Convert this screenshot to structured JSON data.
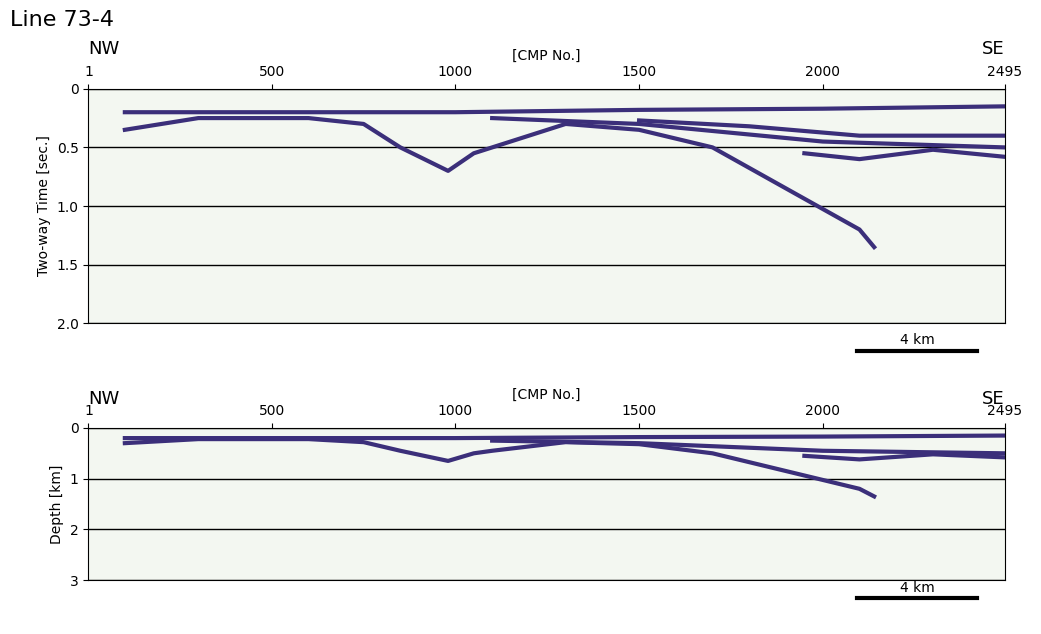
{
  "title": "Line 73-4",
  "chart_data": [
    {
      "type": "line",
      "x_label": "[CMP No.]",
      "y_label": "Two-way Time [sec.]",
      "left_label": "NW",
      "right_label": "SE",
      "xlim": [
        1,
        2495
      ],
      "xticks": [
        1,
        500,
        1000,
        1500,
        2000,
        2495
      ],
      "ylim": [
        2,
        0
      ],
      "yticks": [
        0,
        0.5,
        {
          "value": 1,
          "label": "1.0"
        },
        1.5,
        {
          "value": 2,
          "label": "2.0"
        }
      ],
      "grid": true,
      "scale_bar": {
        "label": "4 km",
        "length": 326
      },
      "series": [
        {
          "color": "#3b2f7a",
          "x": [
            100,
            500,
            1000,
            1500,
            2000,
            2495
          ],
          "values": [
            0.2,
            0.2,
            0.2,
            0.18,
            0.17,
            0.15
          ]
        },
        {
          "color": "#3b2f7a",
          "x": [
            100,
            300,
            600,
            750,
            850,
            980,
            1050,
            1100,
            1300,
            1500,
            1700,
            1900,
            2100,
            2140
          ],
          "values": [
            0.35,
            0.25,
            0.25,
            0.3,
            0.5,
            0.7,
            0.55,
            0.5,
            0.3,
            0.35,
            0.5,
            0.85,
            1.2,
            1.35
          ]
        },
        {
          "color": "#3b2f7a",
          "x": [
            1100,
            1500,
            2000,
            2495
          ],
          "values": [
            0.25,
            0.3,
            0.45,
            0.5
          ]
        },
        {
          "color": "#3b2f7a",
          "x": [
            1500,
            1800,
            2100,
            2495
          ],
          "values": [
            0.27,
            0.32,
            0.4,
            0.4
          ]
        },
        {
          "color": "#3b2f7a",
          "x": [
            1950,
            2100,
            2300,
            2495
          ],
          "values": [
            0.55,
            0.6,
            0.52,
            0.58
          ]
        }
      ]
    },
    {
      "type": "line",
      "x_label": "[CMP No.]",
      "y_label": "Depth [km]",
      "left_label": "NW",
      "right_label": "SE",
      "xlim": [
        1,
        2495
      ],
      "xticks": [
        1,
        500,
        1000,
        1500,
        2000,
        2495
      ],
      "ylim": [
        3,
        0
      ],
      "yticks": [
        0,
        1,
        2,
        3
      ],
      "grid": true,
      "scale_bar": {
        "label": "4 km",
        "length": 326
      },
      "series": [
        {
          "color": "#3b2f7a",
          "x": [
            100,
            500,
            1000,
            1500,
            2000,
            2495
          ],
          "values": [
            0.2,
            0.2,
            0.2,
            0.18,
            0.17,
            0.15
          ]
        },
        {
          "color": "#3b2f7a",
          "x": [
            100,
            300,
            600,
            750,
            850,
            980,
            1050,
            1100,
            1300,
            1500,
            1700,
            1900,
            2100,
            2140
          ],
          "values": [
            0.3,
            0.22,
            0.22,
            0.28,
            0.45,
            0.65,
            0.5,
            0.45,
            0.28,
            0.32,
            0.5,
            0.85,
            1.2,
            1.35
          ]
        },
        {
          "color": "#3b2f7a",
          "x": [
            1100,
            1500,
            2000,
            2495
          ],
          "values": [
            0.25,
            0.3,
            0.45,
            0.5
          ]
        },
        {
          "color": "#3b2f7a",
          "x": [
            1950,
            2100,
            2300,
            2495
          ],
          "values": [
            0.55,
            0.62,
            0.52,
            0.58
          ]
        }
      ]
    }
  ]
}
